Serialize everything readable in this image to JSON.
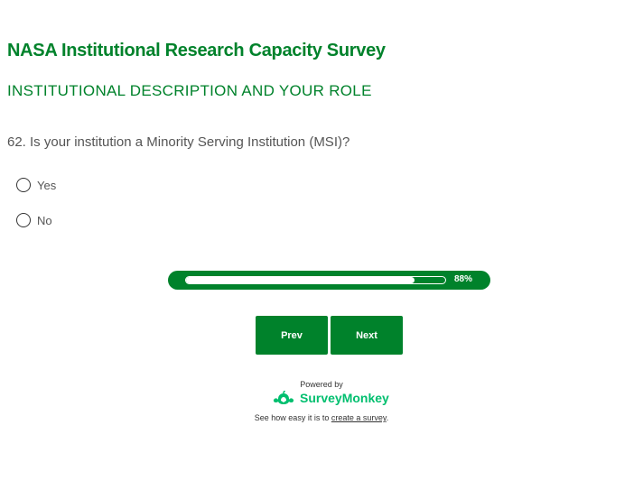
{
  "survey": {
    "title": "NASA Institutional Research Capacity Survey",
    "section": "INSTITUTIONAL DESCRIPTION AND YOUR ROLE"
  },
  "question": {
    "text": "62. Is your institution a Minority Serving Institution (MSI)?",
    "options": [
      {
        "label": "Yes",
        "selected": false
      },
      {
        "label": "No",
        "selected": false
      }
    ]
  },
  "progress": {
    "percent": 88,
    "label": "88%"
  },
  "nav": {
    "prev": "Prev",
    "next": "Next"
  },
  "footer": {
    "powered_by": "Powered by",
    "brand": "SurveyMonkey",
    "tagline": "See how easy it is to ",
    "link": "create a survey",
    "period": "."
  },
  "colors": {
    "accent": "#00822b",
    "brand": "#00bf6f"
  }
}
